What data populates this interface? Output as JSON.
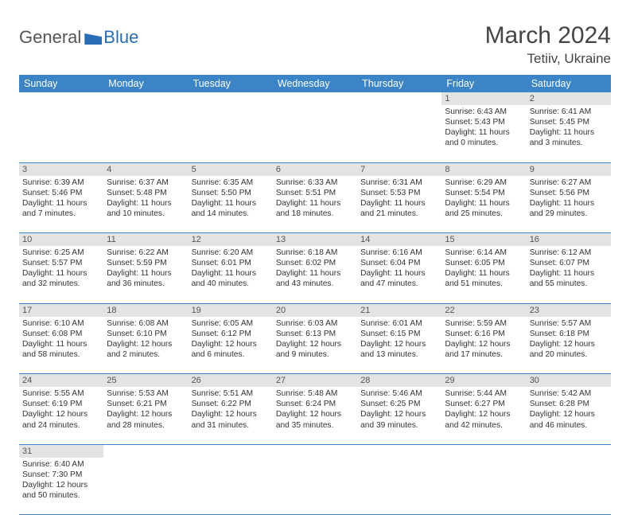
{
  "logo": {
    "part1": "General",
    "part2": "Blue"
  },
  "header": {
    "month": "March 2024",
    "location": "Tetiiv, Ukraine"
  },
  "weekday_labels": [
    "Sunday",
    "Monday",
    "Tuesday",
    "Wednesday",
    "Thursday",
    "Friday",
    "Saturday"
  ],
  "colors": {
    "header_bg": "#3b85c6",
    "header_fg": "#ffffff",
    "row_divider": "#3b85c6",
    "daynum_bg": "#e2e3e4",
    "logo_accent": "#2a6db5"
  },
  "weeks": [
    {
      "nums": [
        "",
        "",
        "",
        "",
        "",
        "1",
        "2"
      ],
      "cells": [
        {},
        {},
        {},
        {},
        {},
        {
          "sunrise": "Sunrise: 6:43 AM",
          "sunset": "Sunset: 5:43 PM",
          "daylight": "Daylight: 11 hours and 0 minutes."
        },
        {
          "sunrise": "Sunrise: 6:41 AM",
          "sunset": "Sunset: 5:45 PM",
          "daylight": "Daylight: 11 hours and 3 minutes."
        }
      ]
    },
    {
      "nums": [
        "3",
        "4",
        "5",
        "6",
        "7",
        "8",
        "9"
      ],
      "cells": [
        {
          "sunrise": "Sunrise: 6:39 AM",
          "sunset": "Sunset: 5:46 PM",
          "daylight": "Daylight: 11 hours and 7 minutes."
        },
        {
          "sunrise": "Sunrise: 6:37 AM",
          "sunset": "Sunset: 5:48 PM",
          "daylight": "Daylight: 11 hours and 10 minutes."
        },
        {
          "sunrise": "Sunrise: 6:35 AM",
          "sunset": "Sunset: 5:50 PM",
          "daylight": "Daylight: 11 hours and 14 minutes."
        },
        {
          "sunrise": "Sunrise: 6:33 AM",
          "sunset": "Sunset: 5:51 PM",
          "daylight": "Daylight: 11 hours and 18 minutes."
        },
        {
          "sunrise": "Sunrise: 6:31 AM",
          "sunset": "Sunset: 5:53 PM",
          "daylight": "Daylight: 11 hours and 21 minutes."
        },
        {
          "sunrise": "Sunrise: 6:29 AM",
          "sunset": "Sunset: 5:54 PM",
          "daylight": "Daylight: 11 hours and 25 minutes."
        },
        {
          "sunrise": "Sunrise: 6:27 AM",
          "sunset": "Sunset: 5:56 PM",
          "daylight": "Daylight: 11 hours and 29 minutes."
        }
      ]
    },
    {
      "nums": [
        "10",
        "11",
        "12",
        "13",
        "14",
        "15",
        "16"
      ],
      "cells": [
        {
          "sunrise": "Sunrise: 6:25 AM",
          "sunset": "Sunset: 5:57 PM",
          "daylight": "Daylight: 11 hours and 32 minutes."
        },
        {
          "sunrise": "Sunrise: 6:22 AM",
          "sunset": "Sunset: 5:59 PM",
          "daylight": "Daylight: 11 hours and 36 minutes."
        },
        {
          "sunrise": "Sunrise: 6:20 AM",
          "sunset": "Sunset: 6:01 PM",
          "daylight": "Daylight: 11 hours and 40 minutes."
        },
        {
          "sunrise": "Sunrise: 6:18 AM",
          "sunset": "Sunset: 6:02 PM",
          "daylight": "Daylight: 11 hours and 43 minutes."
        },
        {
          "sunrise": "Sunrise: 6:16 AM",
          "sunset": "Sunset: 6:04 PM",
          "daylight": "Daylight: 11 hours and 47 minutes."
        },
        {
          "sunrise": "Sunrise: 6:14 AM",
          "sunset": "Sunset: 6:05 PM",
          "daylight": "Daylight: 11 hours and 51 minutes."
        },
        {
          "sunrise": "Sunrise: 6:12 AM",
          "sunset": "Sunset: 6:07 PM",
          "daylight": "Daylight: 11 hours and 55 minutes."
        }
      ]
    },
    {
      "nums": [
        "17",
        "18",
        "19",
        "20",
        "21",
        "22",
        "23"
      ],
      "cells": [
        {
          "sunrise": "Sunrise: 6:10 AM",
          "sunset": "Sunset: 6:08 PM",
          "daylight": "Daylight: 11 hours and 58 minutes."
        },
        {
          "sunrise": "Sunrise: 6:08 AM",
          "sunset": "Sunset: 6:10 PM",
          "daylight": "Daylight: 12 hours and 2 minutes."
        },
        {
          "sunrise": "Sunrise: 6:05 AM",
          "sunset": "Sunset: 6:12 PM",
          "daylight": "Daylight: 12 hours and 6 minutes."
        },
        {
          "sunrise": "Sunrise: 6:03 AM",
          "sunset": "Sunset: 6:13 PM",
          "daylight": "Daylight: 12 hours and 9 minutes."
        },
        {
          "sunrise": "Sunrise: 6:01 AM",
          "sunset": "Sunset: 6:15 PM",
          "daylight": "Daylight: 12 hours and 13 minutes."
        },
        {
          "sunrise": "Sunrise: 5:59 AM",
          "sunset": "Sunset: 6:16 PM",
          "daylight": "Daylight: 12 hours and 17 minutes."
        },
        {
          "sunrise": "Sunrise: 5:57 AM",
          "sunset": "Sunset: 6:18 PM",
          "daylight": "Daylight: 12 hours and 20 minutes."
        }
      ]
    },
    {
      "nums": [
        "24",
        "25",
        "26",
        "27",
        "28",
        "29",
        "30"
      ],
      "cells": [
        {
          "sunrise": "Sunrise: 5:55 AM",
          "sunset": "Sunset: 6:19 PM",
          "daylight": "Daylight: 12 hours and 24 minutes."
        },
        {
          "sunrise": "Sunrise: 5:53 AM",
          "sunset": "Sunset: 6:21 PM",
          "daylight": "Daylight: 12 hours and 28 minutes."
        },
        {
          "sunrise": "Sunrise: 5:51 AM",
          "sunset": "Sunset: 6:22 PM",
          "daylight": "Daylight: 12 hours and 31 minutes."
        },
        {
          "sunrise": "Sunrise: 5:48 AM",
          "sunset": "Sunset: 6:24 PM",
          "daylight": "Daylight: 12 hours and 35 minutes."
        },
        {
          "sunrise": "Sunrise: 5:46 AM",
          "sunset": "Sunset: 6:25 PM",
          "daylight": "Daylight: 12 hours and 39 minutes."
        },
        {
          "sunrise": "Sunrise: 5:44 AM",
          "sunset": "Sunset: 6:27 PM",
          "daylight": "Daylight: 12 hours and 42 minutes."
        },
        {
          "sunrise": "Sunrise: 5:42 AM",
          "sunset": "Sunset: 6:28 PM",
          "daylight": "Daylight: 12 hours and 46 minutes."
        }
      ]
    },
    {
      "nums": [
        "31",
        "",
        "",
        "",
        "",
        "",
        ""
      ],
      "cells": [
        {
          "sunrise": "Sunrise: 6:40 AM",
          "sunset": "Sunset: 7:30 PM",
          "daylight": "Daylight: 12 hours and 50 minutes."
        },
        {},
        {},
        {},
        {},
        {},
        {}
      ]
    }
  ]
}
